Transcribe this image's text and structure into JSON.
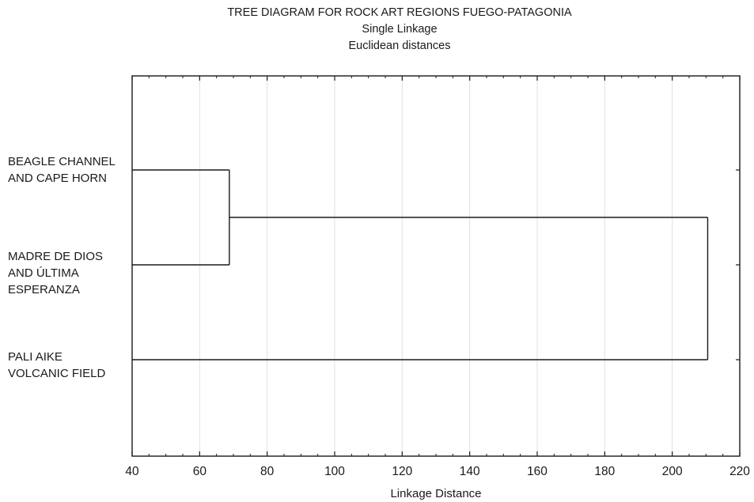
{
  "chart_data": {
    "type": "dendrogram",
    "title": "TREE DIAGRAM FOR  ROCK ART REGIONS FUEGO-PATAGONIA",
    "subtitle_lines": [
      "Single Linkage",
      "Euclidean distances"
    ],
    "xlabel": "Linkage Distance",
    "ylabel": "",
    "xlim": [
      40,
      220
    ],
    "xticks": [
      40,
      60,
      80,
      100,
      120,
      140,
      160,
      180,
      200,
      220
    ],
    "grid": true,
    "leaves": [
      {
        "label_lines": [
          "BEAGLE CHANNEL",
          "AND  CAPE HORN"
        ]
      },
      {
        "label_lines": [
          "MADRE DE DIOS",
          "AND ÚLTIMA",
          "ESPERANZA"
        ]
      },
      {
        "label_lines": [
          "PALI AIKE",
          "VOLCANIC FIELD"
        ]
      }
    ],
    "merges": [
      {
        "clusters": [
          "BEAGLE CHANNEL AND CAPE HORN",
          "MADRE DE DIOS AND ÚLTIMA ESPERANZA"
        ],
        "distance": 68.8
      },
      {
        "clusters": [
          "BEAGLE CHANNEL AND CAPE HORN + MADRE DE DIOS AND ÚLTIMA ESPERANZA",
          "PALI AIKE VOLCANIC FIELD"
        ],
        "distance": 210.5
      }
    ]
  }
}
